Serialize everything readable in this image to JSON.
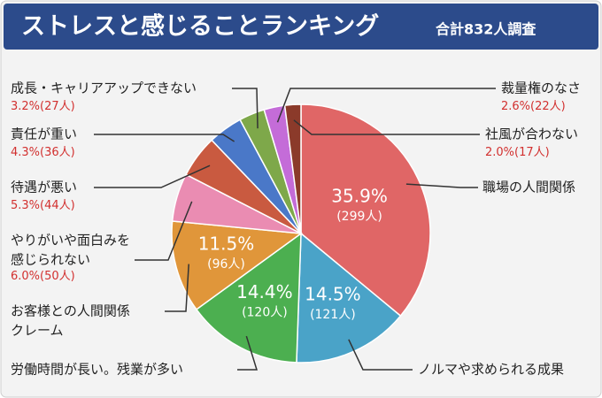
{
  "chart_data": {
    "type": "pie",
    "title": "ストレスと感じることランキング",
    "subtitle": "合計832人調査",
    "categories": [
      "職場の人間関係",
      "ノルマや求められる成果",
      "労働時間が長い。残業が多い",
      [
        "お客様との人間関係",
        "クレーム"
      ],
      [
        "やりがいや面白みを",
        "感じられない"
      ],
      "待遇が悪い",
      "責任が重い",
      "成長・キャリアアップできない",
      "裁量権のなさ",
      "社風が合わない"
    ],
    "values": [
      35.9,
      14.5,
      14.4,
      11.5,
      6.0,
      5.3,
      4.3,
      3.2,
      2.6,
      2.0
    ],
    "value_labels": [
      "35.9%",
      "14.5%",
      "14.4%",
      "11.5%",
      "6.0%",
      "5.3%",
      "4.3%",
      "3.2%",
      "2.6%",
      "2.0%"
    ],
    "counts": [
      299,
      121,
      120,
      96,
      50,
      44,
      36,
      27,
      22,
      17
    ],
    "count_labels": [
      "(299人)",
      "(121人)",
      "(120人)",
      "(96人)",
      "(50人)",
      "(44人)",
      "(36人)",
      "(27人)",
      "(22人)",
      "(17人)"
    ],
    "colors": [
      "#e06666",
      "#4aa3c8",
      "#4caf50",
      "#e0963a",
      "#ea8cb2",
      "#c95a40",
      "#4a78c8",
      "#7ea84a",
      "#c46cd8",
      "#8b3a2a"
    ]
  }
}
